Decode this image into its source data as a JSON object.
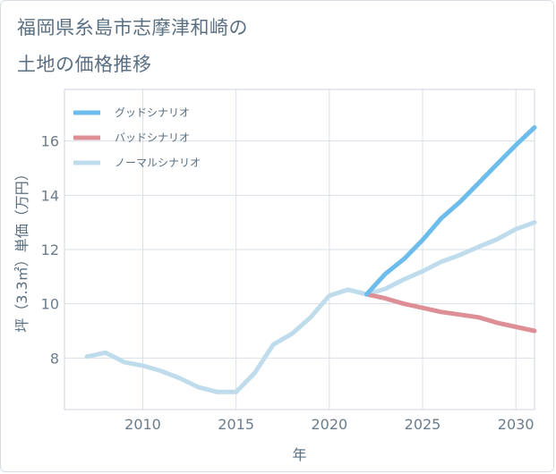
{
  "title_line1": "福岡県糸島市志摩津和崎の",
  "title_line2": "土地の価格推移",
  "chart_data": {
    "type": "line",
    "xlabel": "年",
    "ylabel": "坪（3.3㎡）単価（万円）",
    "xlim": [
      2005.8,
      2031
    ],
    "ylim": [
      6.1,
      17.9
    ],
    "xticks": [
      2010,
      2015,
      2020,
      2025,
      2030
    ],
    "yticks": [
      8,
      10,
      12,
      14,
      16
    ],
    "grid": true,
    "legend_position": "top-left",
    "series": [
      {
        "name": "グッドシナリオ",
        "color": "#6cbcec",
        "x": [
          2022,
          2023,
          2024,
          2025,
          2026,
          2027,
          2028,
          2029,
          2030,
          2031
        ],
        "y": [
          10.35,
          11.1,
          11.65,
          12.35,
          13.15,
          13.75,
          14.45,
          15.15,
          15.85,
          16.5
        ]
      },
      {
        "name": "バッドシナリオ",
        "color": "#de8f96",
        "x": [
          2022,
          2023,
          2024,
          2025,
          2026,
          2027,
          2028,
          2029,
          2030,
          2031
        ],
        "y": [
          10.35,
          10.2,
          10.0,
          9.85,
          9.7,
          9.6,
          9.5,
          9.3,
          9.15,
          9.0
        ]
      },
      {
        "name": "ノーマルシナリオ",
        "color": "#bfdcec",
        "x": [
          2007,
          2008,
          2009,
          2010,
          2011,
          2012,
          2013,
          2014,
          2015,
          2016,
          2017,
          2018,
          2019,
          2020,
          2021,
          2022,
          2023,
          2024,
          2025,
          2026,
          2027,
          2028,
          2029,
          2030,
          2031
        ],
        "y": [
          8.05,
          8.2,
          7.85,
          7.72,
          7.52,
          7.25,
          6.92,
          6.75,
          6.75,
          7.45,
          8.5,
          8.9,
          9.5,
          10.3,
          10.52,
          10.35,
          10.55,
          10.9,
          11.2,
          11.55,
          11.8,
          12.1,
          12.38,
          12.75,
          13.0
        ]
      }
    ]
  }
}
